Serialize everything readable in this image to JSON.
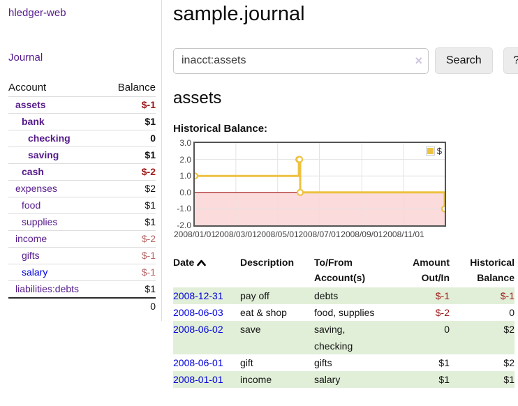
{
  "app": {
    "brand": "hledger-web",
    "nav_journal": "Journal"
  },
  "colors": {
    "link_visited_purple": "#551a8b",
    "link_unvisited_blue": "#0000dd",
    "negative_strong": "#9d1717",
    "negative_muted": "#b56565",
    "row_highlight_green": "#e1efd8",
    "series_gold": "#edc240"
  },
  "sidebar": {
    "headers": {
      "account": "Account",
      "balance": "Balance"
    },
    "accounts": [
      {
        "name": "assets",
        "level": 1,
        "bold": true,
        "link": "purple",
        "balance": "$-1",
        "neg": "strong"
      },
      {
        "name": "bank",
        "level": 2,
        "bold": true,
        "link": "purple",
        "balance": "$1",
        "neg": "none"
      },
      {
        "name": "checking",
        "level": 3,
        "bold": true,
        "link": "purple",
        "balance": "0",
        "neg": "none"
      },
      {
        "name": "saving",
        "level": 3,
        "bold": true,
        "link": "purple",
        "balance": "$1",
        "neg": "none"
      },
      {
        "name": "cash",
        "level": 2,
        "bold": true,
        "link": "purple",
        "balance": "$-2",
        "neg": "strong"
      },
      {
        "name": "expenses",
        "level": 1,
        "bold": false,
        "link": "purple",
        "balance": "$2",
        "neg": "none"
      },
      {
        "name": "food",
        "level": 2,
        "bold": false,
        "link": "purple",
        "balance": "$1",
        "neg": "none"
      },
      {
        "name": "supplies",
        "level": 2,
        "bold": false,
        "link": "purple",
        "balance": "$1",
        "neg": "none"
      },
      {
        "name": "income",
        "level": 1,
        "bold": false,
        "link": "purple",
        "balance": "$-2",
        "neg": "muted"
      },
      {
        "name": "gifts",
        "level": 2,
        "bold": false,
        "link": "purple",
        "balance": "$-1",
        "neg": "muted"
      },
      {
        "name": "salary",
        "level": 2,
        "bold": false,
        "link": "blue",
        "balance": "$-1",
        "neg": "muted"
      },
      {
        "name": "liabilities:debts",
        "level": 1,
        "bold": false,
        "link": "purple",
        "balance": "$1",
        "neg": "none"
      }
    ],
    "total": "0"
  },
  "header": {
    "title": "sample.journal"
  },
  "search": {
    "value": "inacct:assets",
    "clear_icon": "×",
    "search_label": "Search",
    "help_label": "?"
  },
  "account_page": {
    "heading": "assets",
    "chart_label": "Historical Balance:"
  },
  "chart_data": {
    "type": "line",
    "style": "step",
    "title": "Historical Balance:",
    "series": [
      {
        "name": "$",
        "color": "#edc240",
        "points": [
          [
            "2008-01-01",
            1
          ],
          [
            "2008-06-01",
            2
          ],
          [
            "2008-06-02",
            2
          ],
          [
            "2008-06-03",
            0
          ],
          [
            "2008-12-31",
            -1
          ]
        ]
      }
    ],
    "xlim": [
      "2008-01-01",
      "2008-12-31"
    ],
    "ylim": [
      -2.0,
      3.0
    ],
    "x_ticks": [
      "2008/01/01",
      "2008/03/01",
      "2008/05/01",
      "2008/07/01",
      "2008/09/01",
      "2008/11/01"
    ],
    "y_ticks": [
      3.0,
      2.0,
      1.0,
      0.0,
      -1.0,
      -2.0
    ],
    "grid": true,
    "grid_color": "#e3e3e3",
    "negative_fill": "#fbdbdb",
    "zero_line_color": "#990000",
    "legend": [
      "$"
    ],
    "legend_position": "top-right"
  },
  "register": {
    "headers": {
      "date": "Date",
      "description": "Description",
      "to_from": "To/From Account(s)",
      "amount": "Amount Out/In",
      "balance": "Historical Balance"
    },
    "rows": [
      {
        "date": "2008-12-31",
        "description": "pay off",
        "to_from": "debts",
        "amount": "$-1",
        "amount_neg": true,
        "balance": "$-1",
        "balance_neg": true,
        "highlight": true
      },
      {
        "date": "2008-06-03",
        "description": "eat & shop",
        "to_from": "food, supplies",
        "amount": "$-2",
        "amount_neg": true,
        "balance": "0",
        "balance_neg": false,
        "highlight": false
      },
      {
        "date": "2008-06-02",
        "description": "save",
        "to_from": "saving,\nchecking",
        "amount": "0",
        "amount_neg": false,
        "balance": "$2",
        "balance_neg": false,
        "highlight": true
      },
      {
        "date": "2008-06-01",
        "description": "gift",
        "to_from": "gifts",
        "amount": "$1",
        "amount_neg": false,
        "balance": "$2",
        "balance_neg": false,
        "highlight": false
      },
      {
        "date": "2008-01-01",
        "description": "income",
        "to_from": "salary",
        "amount": "$1",
        "amount_neg": false,
        "balance": "$1",
        "balance_neg": false,
        "highlight": true
      }
    ]
  }
}
